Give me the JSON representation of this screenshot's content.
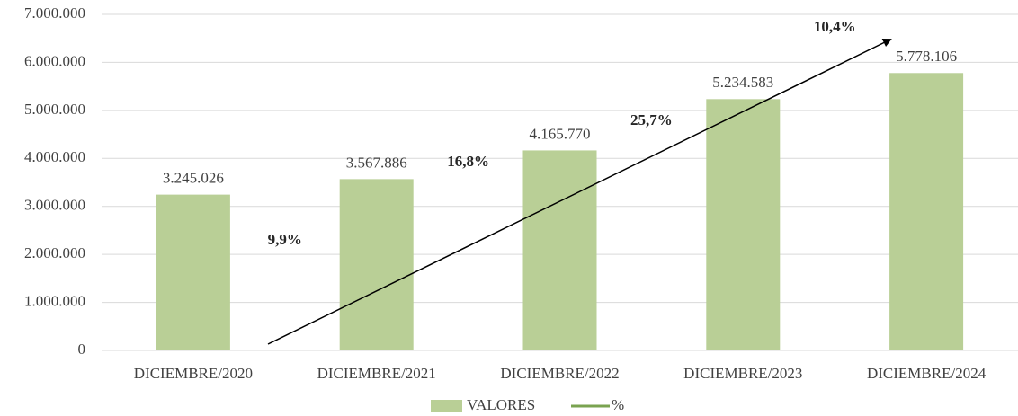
{
  "chart_data": {
    "type": "bar",
    "categories": [
      "DICIEMBRE/2020",
      "DICIEMBRE/2021",
      "DICIEMBRE/2022",
      "DICIEMBRE/2023",
      "DICIEMBRE/2024"
    ],
    "series": [
      {
        "name": "VALORES",
        "color": "#b9cf96",
        "values": [
          3245026,
          3567886,
          4165770,
          5234583,
          5778106
        ],
        "value_labels": [
          "3.245.026",
          "3.567.886",
          "4.165.770",
          "5.234.583",
          "5.778.106"
        ]
      },
      {
        "name": "%",
        "color": "#7aa350",
        "values": [
          null,
          9.9,
          16.8,
          25.7,
          10.4
        ],
        "value_labels": [
          null,
          "9,9%",
          "16,8%",
          "25,7%",
          "10,4%"
        ]
      }
    ],
    "ylim": [
      0,
      7000000
    ],
    "yticks": [
      {
        "value": 0,
        "label": "0"
      },
      {
        "value": 1000000,
        "label": "1.000.000"
      },
      {
        "value": 2000000,
        "label": "2.000.000"
      },
      {
        "value": 3000000,
        "label": "3.000.000"
      },
      {
        "value": 4000000,
        "label": "4.000.000"
      },
      {
        "value": 5000000,
        "label": "5.000.000"
      },
      {
        "value": 6000000,
        "label": "6.000.000"
      },
      {
        "value": 7000000,
        "label": "7.000.000"
      }
    ],
    "grid": true
  }
}
